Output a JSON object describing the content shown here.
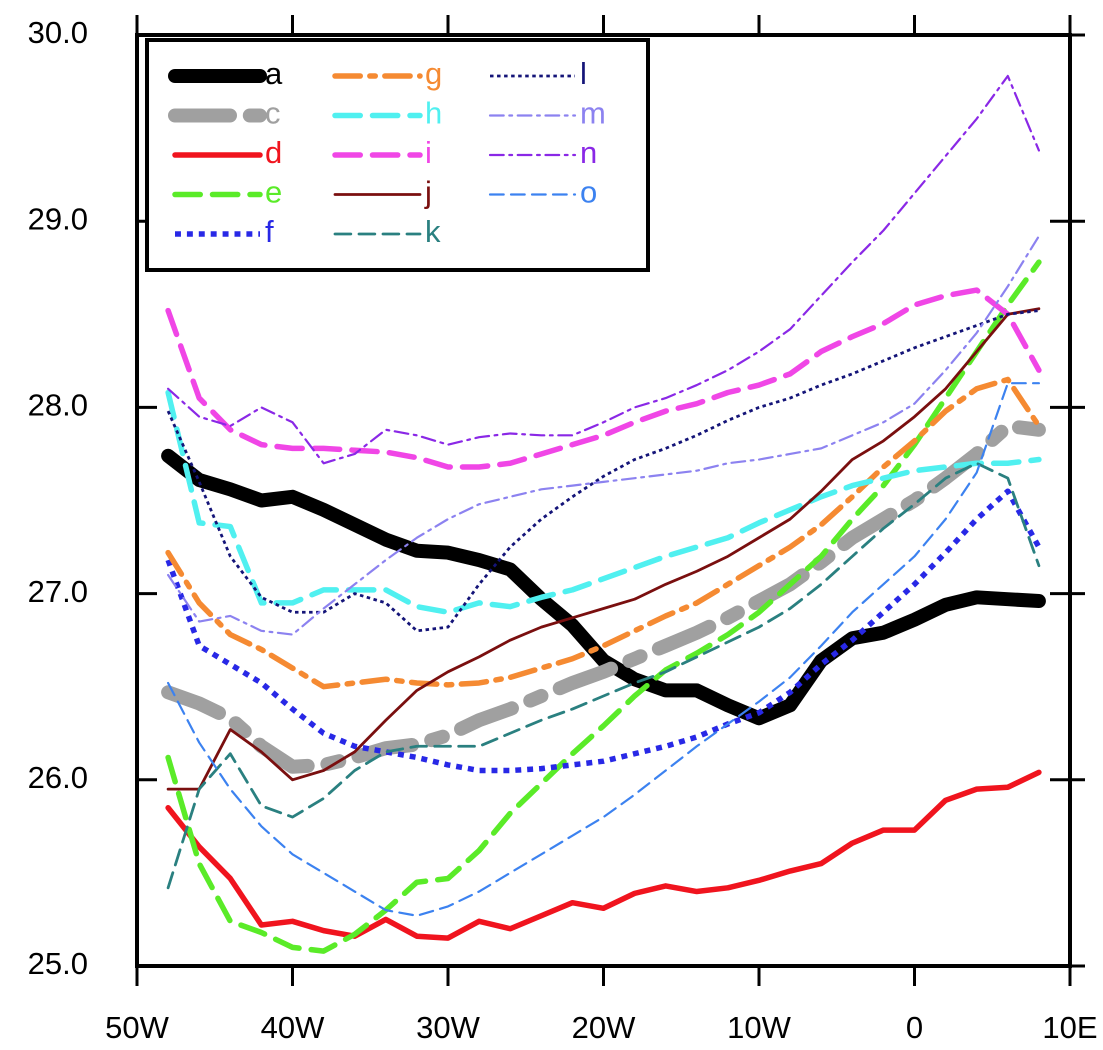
{
  "chart_data": {
    "type": "line",
    "x": [
      -48,
      -46,
      -44,
      -42,
      -40,
      -38,
      -36,
      -34,
      -32,
      -30,
      -28,
      -26,
      -24,
      -22,
      -20,
      -18,
      -16,
      -14,
      -12,
      -10,
      -8,
      -6,
      -4,
      -2,
      0,
      2,
      4,
      6,
      8
    ],
    "xlim": [
      -50,
      10
    ],
    "xticks": [
      {
        "value": -50,
        "label": "50W"
      },
      {
        "value": -40,
        "label": "40W"
      },
      {
        "value": -30,
        "label": "30W"
      },
      {
        "value": -20,
        "label": "20W"
      },
      {
        "value": -10,
        "label": "10W"
      },
      0,
      {
        "value": 10,
        "label": "10E"
      }
    ],
    "ylim": [
      25,
      30
    ],
    "yticks": [
      {
        "value": 25,
        "label": "25.0"
      },
      {
        "value": 26,
        "label": "26.0"
      },
      {
        "value": 27,
        "label": "27.0"
      },
      {
        "value": 28,
        "label": "28.0"
      },
      {
        "value": 29,
        "label": "29.0"
      },
      {
        "value": 30,
        "label": "30.0"
      }
    ],
    "legend": "upper left",
    "series": [
      {
        "name": "a",
        "color": "#000000",
        "line_style": "solid",
        "weight": "heavy",
        "values": [
          27.74,
          27.61,
          27.56,
          27.5,
          27.52,
          27.45,
          27.37,
          27.29,
          27.23,
          27.22,
          27.18,
          27.13,
          26.97,
          26.83,
          26.64,
          26.54,
          26.48,
          26.48,
          26.4,
          26.33,
          26.4,
          26.64,
          26.76,
          26.79,
          26.86,
          26.94,
          26.98,
          26.97,
          26.96
        ]
      },
      {
        "name": "c",
        "color": "#a0a0a0",
        "line_style": "dash-dot",
        "weight": "heavy",
        "values": [
          26.47,
          26.41,
          26.33,
          26.18,
          26.07,
          26.08,
          26.12,
          26.17,
          26.19,
          26.24,
          26.32,
          26.38,
          26.45,
          26.52,
          26.58,
          26.65,
          26.72,
          26.79,
          26.87,
          26.96,
          27.05,
          27.17,
          27.3,
          27.4,
          27.5,
          27.62,
          27.75,
          27.9,
          27.88
        ]
      },
      {
        "name": "d",
        "color": "#f0141e",
        "line_style": "solid",
        "weight": "bold",
        "values": [
          25.85,
          25.64,
          25.47,
          25.22,
          25.24,
          25.19,
          25.16,
          25.25,
          25.16,
          25.15,
          25.24,
          25.2,
          25.27,
          25.34,
          25.31,
          25.39,
          25.43,
          25.4,
          25.42,
          25.46,
          25.51,
          25.55,
          25.66,
          25.73,
          25.73,
          25.89,
          25.95,
          25.96,
          26.04
        ]
      },
      {
        "name": "e",
        "color": "#5aeb28",
        "line_style": "dashed",
        "weight": "bold",
        "values": [
          26.12,
          25.55,
          25.24,
          25.18,
          25.1,
          25.08,
          25.17,
          25.3,
          25.45,
          25.47,
          25.62,
          25.82,
          25.98,
          26.14,
          26.29,
          26.45,
          26.59,
          26.68,
          26.78,
          26.9,
          27.05,
          27.2,
          27.4,
          27.58,
          27.8,
          28.05,
          28.3,
          28.55,
          28.78
        ]
      },
      {
        "name": "f",
        "color": "#2828e6",
        "line_style": "dotted",
        "weight": "bold",
        "values": [
          27.18,
          26.72,
          26.62,
          26.52,
          26.38,
          26.25,
          26.18,
          26.15,
          26.12,
          26.08,
          26.05,
          26.05,
          26.06,
          26.08,
          26.1,
          26.14,
          26.18,
          26.23,
          26.3,
          26.36,
          26.47,
          26.62,
          26.75,
          26.9,
          27.05,
          27.22,
          27.4,
          27.55,
          27.25
        ]
      },
      {
        "name": "g",
        "color": "#f58a32",
        "line_style": "dash-dot",
        "weight": "bold",
        "values": [
          27.22,
          26.95,
          26.78,
          26.7,
          26.6,
          26.5,
          26.52,
          26.54,
          26.52,
          26.51,
          26.52,
          26.55,
          26.6,
          26.65,
          26.72,
          26.8,
          26.88,
          26.95,
          27.05,
          27.15,
          27.25,
          27.37,
          27.52,
          27.68,
          27.82,
          27.98,
          28.1,
          28.15,
          27.9
        ]
      },
      {
        "name": "h",
        "color": "#50f0f0",
        "line_style": "dashed",
        "weight": "bold",
        "values": [
          28.08,
          27.38,
          27.36,
          26.95,
          26.95,
          27.02,
          27.02,
          27.02,
          26.93,
          26.9,
          26.95,
          26.93,
          26.98,
          27.02,
          27.08,
          27.14,
          27.2,
          27.25,
          27.3,
          27.38,
          27.45,
          27.52,
          27.58,
          27.62,
          27.66,
          27.68,
          27.7,
          27.7,
          27.72
        ]
      },
      {
        "name": "i",
        "color": "#f046e6",
        "line_style": "dashed",
        "weight": "bold",
        "values": [
          28.52,
          28.05,
          27.88,
          27.8,
          27.78,
          27.78,
          27.77,
          27.76,
          27.73,
          27.68,
          27.68,
          27.7,
          27.75,
          27.8,
          27.85,
          27.92,
          27.98,
          28.02,
          28.08,
          28.12,
          28.18,
          28.3,
          28.38,
          28.45,
          28.55,
          28.6,
          28.63,
          28.5,
          28.2
        ]
      },
      {
        "name": "j",
        "color": "#7a0f0f",
        "line_style": "solid",
        "weight": "medium",
        "values": [
          25.95,
          25.95,
          26.27,
          26.15,
          26.0,
          26.05,
          26.15,
          26.32,
          26.48,
          26.58,
          26.66,
          26.75,
          26.82,
          26.87,
          26.92,
          26.97,
          27.05,
          27.12,
          27.2,
          27.3,
          27.4,
          27.55,
          27.72,
          27.82,
          27.95,
          28.1,
          28.3,
          28.5,
          28.53
        ]
      },
      {
        "name": "k",
        "color": "#2a8080",
        "line_style": "dashed",
        "weight": "medium",
        "values": [
          25.42,
          25.95,
          26.14,
          25.86,
          25.8,
          25.9,
          26.05,
          26.15,
          26.18,
          26.18,
          26.18,
          26.25,
          26.32,
          26.38,
          26.45,
          26.52,
          26.58,
          26.66,
          26.74,
          26.82,
          26.92,
          27.05,
          27.2,
          27.35,
          27.48,
          27.62,
          27.7,
          27.62,
          27.15
        ]
      },
      {
        "name": "l",
        "color": "#141478",
        "line_style": "dotted",
        "weight": "medium",
        "values": [
          27.98,
          27.6,
          27.2,
          26.98,
          26.9,
          26.9,
          27.0,
          26.95,
          26.8,
          26.82,
          27.05,
          27.25,
          27.4,
          27.52,
          27.63,
          27.72,
          27.78,
          27.85,
          27.93,
          28.0,
          28.05,
          28.12,
          28.18,
          28.25,
          28.32,
          28.38,
          28.44,
          28.5,
          28.52
        ]
      },
      {
        "name": "m",
        "color": "#8c82f0",
        "line_style": "dash-dot",
        "weight": "thin",
        "values": [
          27.1,
          26.85,
          26.88,
          26.8,
          26.78,
          26.92,
          27.05,
          27.18,
          27.3,
          27.4,
          27.48,
          27.52,
          27.56,
          27.58,
          27.6,
          27.62,
          27.64,
          27.66,
          27.7,
          27.72,
          27.75,
          27.78,
          27.85,
          27.92,
          28.02,
          28.2,
          28.4,
          28.65,
          28.92
        ]
      },
      {
        "name": "n",
        "color": "#8a28e6",
        "line_style": "dash-dot",
        "weight": "thin",
        "values": [
          28.1,
          27.95,
          27.9,
          28.0,
          27.92,
          27.7,
          27.75,
          27.88,
          27.85,
          27.8,
          27.84,
          27.86,
          27.85,
          27.85,
          27.92,
          28.0,
          28.05,
          28.12,
          28.2,
          28.3,
          28.42,
          28.6,
          28.78,
          28.95,
          29.15,
          29.35,
          29.55,
          29.78,
          29.38
        ]
      },
      {
        "name": "o",
        "color": "#3c82f0",
        "line_style": "dashed",
        "weight": "thin",
        "values": [
          26.52,
          26.2,
          25.95,
          25.75,
          25.6,
          25.5,
          25.4,
          25.3,
          25.27,
          25.32,
          25.4,
          25.5,
          25.6,
          25.7,
          25.8,
          25.92,
          26.05,
          26.18,
          26.3,
          26.42,
          26.55,
          26.72,
          26.9,
          27.05,
          27.2,
          27.4,
          27.65,
          28.13,
          28.13
        ]
      }
    ]
  }
}
